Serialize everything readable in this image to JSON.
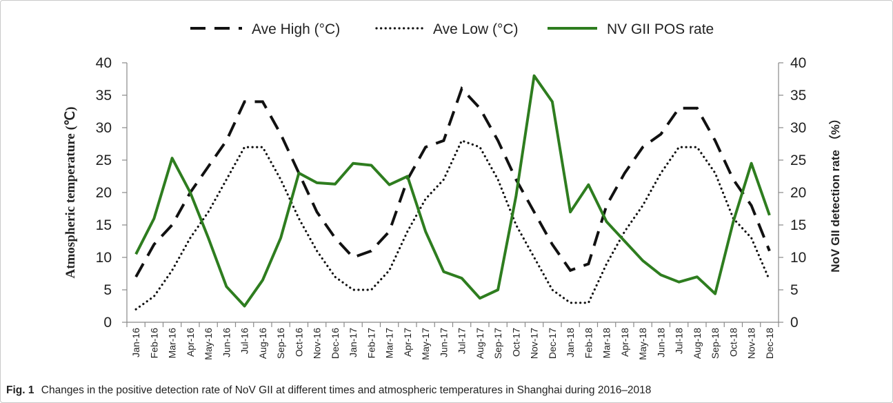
{
  "chart_data": {
    "type": "line",
    "categories": [
      "Jan-16",
      "Feb-16",
      "Mar-16",
      "Apr-16",
      "May-16",
      "Jun-16",
      "Jul-16",
      "Aug-16",
      "Sep-16",
      "Oct-16",
      "Nov-16",
      "Dec-16",
      "Jan-17",
      "Feb-17",
      "Mar-17",
      "Apr-17",
      "May-17",
      "Jun-17",
      "Jul-17",
      "Aug-17",
      "Sep-17",
      "Oct-17",
      "Nov-17",
      "Dec-17",
      "Jan-18",
      "Feb-18",
      "Mar-18",
      "Apr-18",
      "May-18",
      "Jun-18",
      "Jul-18",
      "Aug-18",
      "Sep-18",
      "Oct-18",
      "Nov-18",
      "Dec-18"
    ],
    "series": [
      {
        "name": "Ave High (°C)",
        "axis": "left",
        "style": "dashed",
        "color": "#111111",
        "values": [
          7,
          12,
          15,
          20,
          24,
          28,
          34,
          34,
          29,
          23,
          17,
          13,
          10,
          11,
          14,
          22,
          27,
          28,
          36,
          33,
          28,
          22,
          17,
          12,
          8,
          9,
          18,
          23,
          27,
          29,
          33,
          33,
          28,
          22,
          18,
          11
        ]
      },
      {
        "name": "Ave Low (°C)",
        "axis": "left",
        "style": "dotted",
        "color": "#111111",
        "values": [
          2,
          4,
          8,
          13,
          17,
          22,
          27,
          27,
          22,
          16,
          11,
          7,
          5,
          5,
          8,
          14,
          19,
          22,
          28,
          27,
          22,
          15,
          10,
          5,
          3,
          3,
          9,
          14,
          18,
          23,
          27,
          27,
          23,
          16,
          13,
          6.5
        ]
      },
      {
        "name": "NV GII POS rate",
        "axis": "right",
        "style": "solid",
        "color": "#2e7d1f",
        "values": [
          10.5,
          16,
          25.3,
          20,
          13,
          5.5,
          2.5,
          6.5,
          13,
          23,
          21.5,
          21.3,
          24.5,
          24.2,
          21.2,
          22.5,
          14,
          7.8,
          6.8,
          3.7,
          5,
          19.5,
          38,
          34,
          17,
          21.2,
          15.5,
          12.5,
          9.5,
          7.3,
          6.2,
          7,
          4.4,
          15.5,
          24.5,
          16.5
        ]
      }
    ],
    "y_left": {
      "label": "Atmospheric temperature (℃)",
      "lim": [
        0,
        40
      ],
      "ticks": [
        0,
        5,
        10,
        15,
        20,
        25,
        30,
        35,
        40
      ]
    },
    "y_right": {
      "label": "NoV GII detection rate （%）",
      "lim": [
        0,
        40
      ],
      "ticks": [
        0,
        5,
        10,
        15,
        20,
        25,
        30,
        35,
        40
      ]
    },
    "legend_position": "top-center",
    "grid": false
  },
  "caption": {
    "label": "Fig. 1",
    "text": "Changes in the positive detection rate of NoV GII at different times and atmospheric temperatures in Shanghai during 2016–2018"
  }
}
